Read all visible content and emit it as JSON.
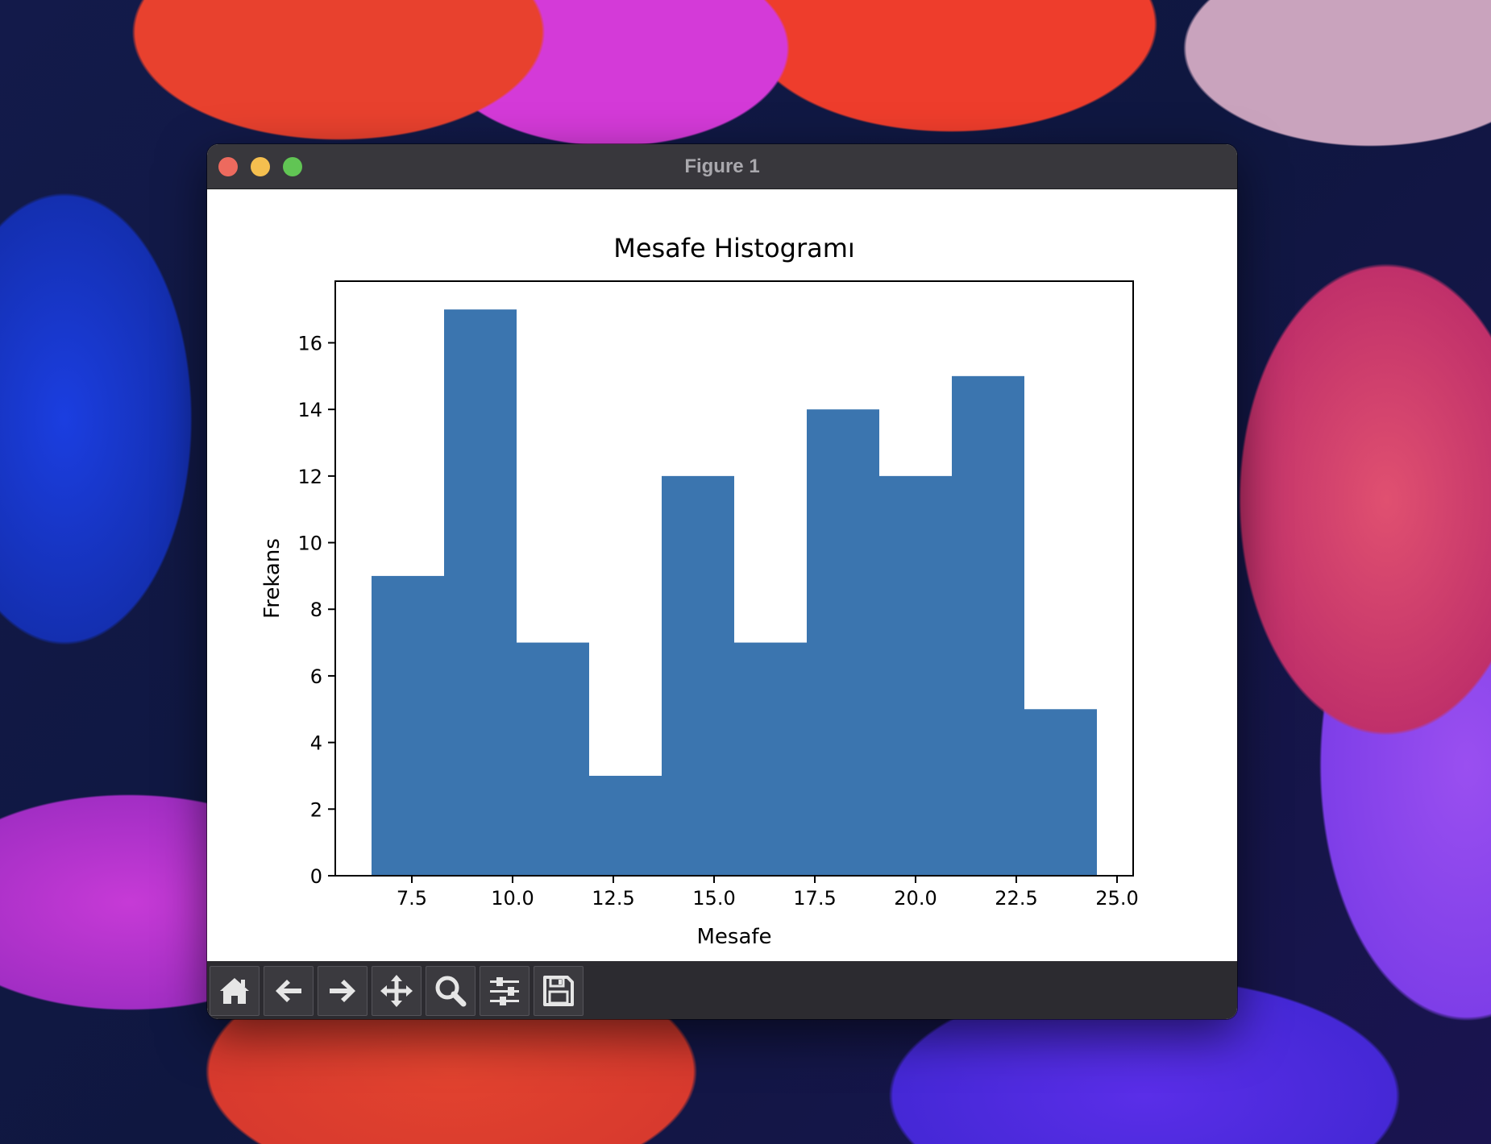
{
  "window": {
    "title": "Figure 1"
  },
  "toolbar": {
    "tools": [
      {
        "icon": "home-icon"
      },
      {
        "icon": "back-arrow-icon"
      },
      {
        "icon": "forward-arrow-icon"
      },
      {
        "icon": "pan-icon"
      },
      {
        "icon": "zoom-icon"
      },
      {
        "icon": "configure-subplots-icon"
      },
      {
        "icon": "save-icon"
      }
    ]
  },
  "chart_data": {
    "type": "bar",
    "title": "Mesafe Histogramı",
    "xlabel": "Mesafe",
    "ylabel": "Frekans",
    "bin_edges": [
      6.5,
      8.3,
      10.1,
      11.9,
      13.7,
      15.5,
      17.3,
      19.1,
      20.9,
      22.7,
      24.5
    ],
    "values": [
      9,
      17,
      7,
      3,
      12,
      7,
      14,
      12,
      15,
      5
    ],
    "xlim": [
      5.6,
      25.4
    ],
    "ylim": [
      0,
      17.85
    ],
    "xticks": [
      "7.5",
      "10.0",
      "12.5",
      "15.0",
      "17.5",
      "20.0",
      "22.5",
      "25.0"
    ],
    "yticks": [
      "0",
      "2",
      "4",
      "6",
      "8",
      "10",
      "12",
      "14",
      "16"
    ],
    "bar_color": "#3b75af",
    "grid": false
  }
}
